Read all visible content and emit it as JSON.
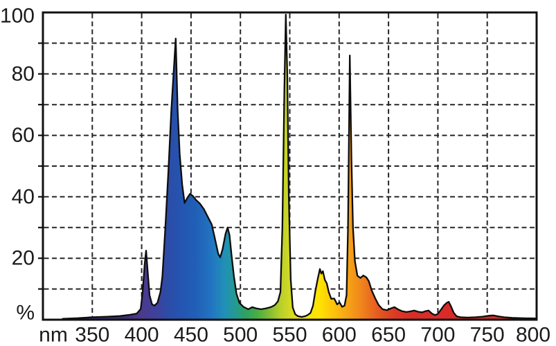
{
  "figure": {
    "kind": "lamp spectral power distribution",
    "background_color": "#ffffff"
  },
  "chart_data": {
    "type": "area",
    "title": "",
    "xlabel": "nm",
    "ylabel": "%",
    "xlim": [
      300,
      800
    ],
    "ylim": [
      0,
      100
    ],
    "grid": "dashed",
    "x_tick_labels": [
      "350",
      "400",
      "450",
      "500",
      "550",
      "600",
      "650",
      "700",
      "750",
      "800"
    ],
    "x_ticks": [
      350,
      400,
      450,
      500,
      550,
      600,
      650,
      700,
      750,
      800
    ],
    "y_tick_labels": [
      "100",
      "80",
      "60",
      "40",
      "20"
    ],
    "y_ticks": [
      100,
      80,
      60,
      40,
      20
    ],
    "y_grid_step": 10,
    "axis_color": "#111111",
    "grid_color": "#262626",
    "curve_outline_color": "#0d0d0d",
    "spectrum_gradient": [
      {
        "nm": 380,
        "color": "#3b2d6e"
      },
      {
        "nm": 400,
        "color": "#4b3a8b"
      },
      {
        "nm": 413,
        "color": "#40409b"
      },
      {
        "nm": 426,
        "color": "#2d4ca6"
      },
      {
        "nm": 440,
        "color": "#2355b1"
      },
      {
        "nm": 455,
        "color": "#215fb7"
      },
      {
        "nm": 470,
        "color": "#2174c1"
      },
      {
        "nm": 484,
        "color": "#2190b8"
      },
      {
        "nm": 495,
        "color": "#259a90"
      },
      {
        "nm": 505,
        "color": "#2ca263"
      },
      {
        "nm": 516,
        "color": "#46ac46"
      },
      {
        "nm": 528,
        "color": "#7cba35"
      },
      {
        "nm": 541,
        "color": "#b8d02a"
      },
      {
        "nm": 553,
        "color": "#dcdc20"
      },
      {
        "nm": 566,
        "color": "#f0e414"
      },
      {
        "nm": 580,
        "color": "#ffe400"
      },
      {
        "nm": 593,
        "color": "#fcc60c"
      },
      {
        "nm": 606,
        "color": "#f8a915"
      },
      {
        "nm": 619,
        "color": "#f18e1a"
      },
      {
        "nm": 631,
        "color": "#eb6f1e"
      },
      {
        "nm": 644,
        "color": "#e35022"
      },
      {
        "nm": 657,
        "color": "#dc3925"
      },
      {
        "nm": 673,
        "color": "#d92e27"
      },
      {
        "nm": 710,
        "color": "#da2b28"
      },
      {
        "nm": 800,
        "color": "#d92b28"
      }
    ],
    "points": [
      [
        320,
        0.3
      ],
      [
        335,
        0.5
      ],
      [
        350,
        0.8
      ],
      [
        365,
        1.0
      ],
      [
        378,
        1.2
      ],
      [
        388,
        1.6
      ],
      [
        395,
        2.0
      ],
      [
        399,
        3.5
      ],
      [
        401,
        9
      ],
      [
        403,
        18
      ],
      [
        404.5,
        22.5
      ],
      [
        406,
        16
      ],
      [
        408,
        8
      ],
      [
        410.5,
        5
      ],
      [
        413,
        4.6
      ],
      [
        416,
        5.5
      ],
      [
        419,
        9
      ],
      [
        421,
        14
      ],
      [
        424,
        30
      ],
      [
        427,
        48
      ],
      [
        430,
        68
      ],
      [
        432.5,
        81
      ],
      [
        434.5,
        91.5
      ],
      [
        436.5,
        68
      ],
      [
        438.5,
        54
      ],
      [
        441,
        44
      ],
      [
        443.5,
        38
      ],
      [
        446,
        39.5
      ],
      [
        449,
        41
      ],
      [
        452,
        40.2
      ],
      [
        455,
        39
      ],
      [
        459,
        37.8
      ],
      [
        463,
        36
      ],
      [
        467,
        33.5
      ],
      [
        471,
        31
      ],
      [
        474.5,
        26
      ],
      [
        477.5,
        21.5
      ],
      [
        479.5,
        20.3
      ],
      [
        482,
        23
      ],
      [
        485,
        28
      ],
      [
        487,
        30
      ],
      [
        489,
        27.5
      ],
      [
        491,
        21
      ],
      [
        493.5,
        14
      ],
      [
        496,
        8.5
      ],
      [
        499,
        5.5
      ],
      [
        503,
        4.2
      ],
      [
        508,
        3.4
      ],
      [
        512,
        4.1
      ],
      [
        516,
        3.7
      ],
      [
        521,
        3.4
      ],
      [
        526,
        3.7
      ],
      [
        531,
        4.1
      ],
      [
        535,
        4.8
      ],
      [
        538,
        6
      ],
      [
        540.5,
        9
      ],
      [
        542.5,
        30
      ],
      [
        544.5,
        75
      ],
      [
        546,
        99.3
      ],
      [
        547.5,
        80
      ],
      [
        549,
        40
      ],
      [
        551,
        13
      ],
      [
        553,
        4
      ],
      [
        555.5,
        1.8
      ],
      [
        558,
        1.2
      ],
      [
        562,
        0.9
      ],
      [
        566,
        1.2
      ],
      [
        568.5,
        1.6
      ],
      [
        571,
        2.2
      ],
      [
        573.5,
        4.5
      ],
      [
        576,
        9.5
      ],
      [
        578.5,
        13.5
      ],
      [
        580.5,
        16.5
      ],
      [
        582,
        15
      ],
      [
        583.5,
        15.8
      ],
      [
        585.5,
        13
      ],
      [
        587.5,
        11.8
      ],
      [
        589.5,
        9
      ],
      [
        592,
        6.8
      ],
      [
        595,
        6.9
      ],
      [
        598,
        5
      ],
      [
        600.5,
        5.6
      ],
      [
        603,
        4.2
      ],
      [
        605.5,
        4.6
      ],
      [
        607.5,
        8
      ],
      [
        609,
        30
      ],
      [
        610.8,
        86
      ],
      [
        612.5,
        52
      ],
      [
        614,
        30
      ],
      [
        616,
        19
      ],
      [
        618.5,
        14.3
      ],
      [
        621.5,
        13.6
      ],
      [
        624.5,
        14.4
      ],
      [
        627.5,
        13.8
      ],
      [
        630,
        12.6
      ],
      [
        633,
        9.5
      ],
      [
        636.5,
        7
      ],
      [
        640,
        4.8
      ],
      [
        644,
        3.4
      ],
      [
        648.5,
        3.1
      ],
      [
        652.5,
        3.7
      ],
      [
        656,
        4.1
      ],
      [
        659.5,
        3.4
      ],
      [
        663.5,
        2.8
      ],
      [
        668,
        2.5
      ],
      [
        672,
        2.7
      ],
      [
        676,
        3.0
      ],
      [
        680,
        2.6
      ],
      [
        684,
        2.4
      ],
      [
        687.5,
        2.8
      ],
      [
        690.5,
        3.0
      ],
      [
        694,
        2.0
      ],
      [
        697,
        1.5
      ],
      [
        700,
        1.9
      ],
      [
        703,
        3.2
      ],
      [
        706,
        4.6
      ],
      [
        709,
        5.5
      ],
      [
        711,
        5.8
      ],
      [
        713.5,
        4.2
      ],
      [
        716,
        2.3
      ],
      [
        719,
        1.1
      ],
      [
        723,
        0.8
      ],
      [
        730,
        0.7
      ],
      [
        738,
        0.8
      ],
      [
        745,
        1.0
      ],
      [
        752,
        1.3
      ],
      [
        756,
        1.4
      ],
      [
        761,
        1.1
      ],
      [
        767,
        0.8
      ],
      [
        775,
        0.6
      ],
      [
        785,
        0.5
      ],
      [
        800,
        0.4
      ]
    ]
  }
}
